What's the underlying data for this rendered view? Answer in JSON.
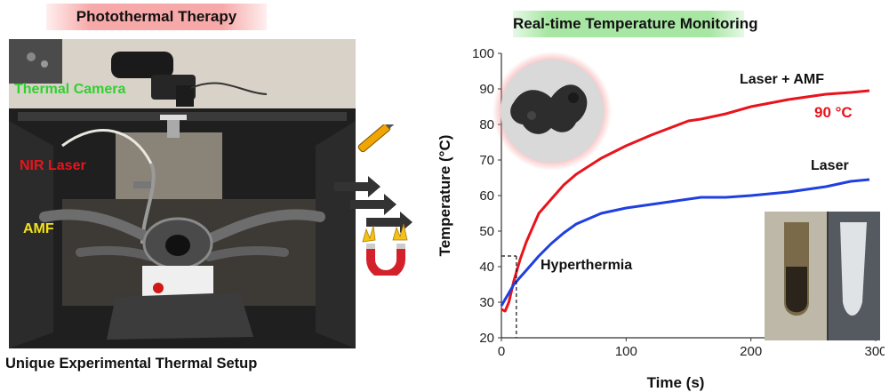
{
  "left_panel": {
    "title": "Photothermal Therapy",
    "labels": {
      "thermal_camera": "Thermal Camera",
      "nir_laser": "NIR Laser",
      "amf": "AMF"
    },
    "caption": "Unique Experimental Thermal Setup"
  },
  "right_panel": {
    "title": "Real-time Temperature Monitoring"
  },
  "colors": {
    "laser_amf": "#e8141c",
    "laser": "#1f3fe0",
    "thermal_camera_label": "#2fd12f",
    "nir_laser_label": "#e8141c",
    "amf_label": "#f2e21b",
    "left_banner": "#f7a9a9",
    "right_banner": "#a8e6a3"
  },
  "icons": [
    "laser-pen-icon",
    "arrows-icon",
    "magnet-icon",
    "nanoparticle-tem-image",
    "vial-photo"
  ],
  "chart_data": {
    "type": "line",
    "xlabel": "Time (s)",
    "ylabel": "Temperature (°C)",
    "xlim": [
      0,
      300
    ],
    "ylim": [
      20,
      100
    ],
    "xticks": [
      "0",
      "100",
      "200",
      "300"
    ],
    "yticks": [
      "20",
      "30",
      "40",
      "50",
      "60",
      "70",
      "80",
      "90",
      "100"
    ],
    "grid": false,
    "series": [
      {
        "name": "Laser + AMF",
        "x": [
          0,
          3,
          6,
          10,
          15,
          20,
          25,
          30,
          40,
          50,
          60,
          80,
          100,
          120,
          150,
          160,
          180,
          200,
          230,
          260,
          280,
          295
        ],
        "values": [
          28,
          27.5,
          30,
          36,
          42,
          47,
          51,
          55,
          59,
          63,
          66,
          70.5,
          74,
          77,
          81,
          81.5,
          83,
          85,
          87,
          88.5,
          89,
          89.5
        ]
      },
      {
        "name": "Laser",
        "x": [
          0,
          5,
          10,
          15,
          20,
          30,
          40,
          50,
          60,
          80,
          100,
          120,
          140,
          160,
          180,
          200,
          230,
          260,
          280,
          295
        ],
        "values": [
          29,
          32,
          35,
          37,
          39,
          43,
          46.5,
          49.5,
          52,
          55,
          56.5,
          57.5,
          58.5,
          59.5,
          59.5,
          60,
          61,
          62.5,
          64,
          64.5
        ]
      }
    ],
    "annotations": {
      "series_label_1": "Laser + AMF",
      "series_value_1": "90 °C",
      "series_label_2": "Laser",
      "threshold_label": "Hyperthermia",
      "threshold": {
        "x": 12,
        "y": 43
      }
    }
  }
}
